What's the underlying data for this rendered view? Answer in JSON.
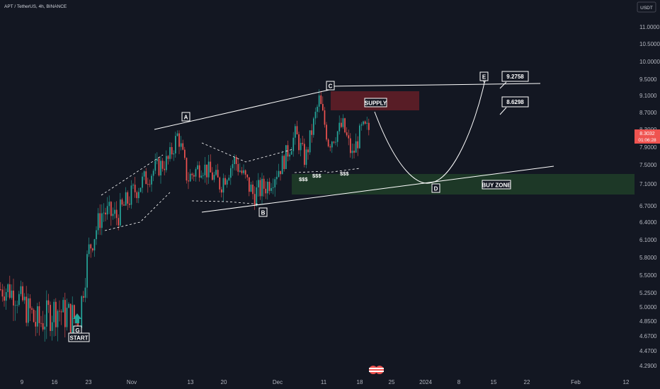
{
  "header": {
    "symbol_title": "APT / TetherUS, 4h, BINANCE",
    "currency": "USDT"
  },
  "chart_data": {
    "type": "candlestick",
    "title": "APT / TetherUS, 4h, BINANCE",
    "ylim": [
      4.2,
      11.5
    ],
    "y_ticks": [
      "11.0000",
      "10.5000",
      "10.0000",
      "9.5000",
      "9.1000",
      "8.7000",
      "8.3000",
      "7.9000",
      "7.5000",
      "7.1000",
      "6.7000",
      "6.4000",
      "6.1000",
      "5.8000",
      "5.5000",
      "5.2500",
      "5.0000",
      "4.8500",
      "4.6700",
      "4.4700",
      "4.2900"
    ],
    "x_ticks": [
      "9",
      "16",
      "23",
      "Nov",
      "13",
      "20",
      "Dec",
      "11",
      "18",
      "25",
      "2024",
      "8",
      "15",
      "22",
      "Feb",
      "12"
    ],
    "current_price": "8.3032",
    "countdown": "01:06:28",
    "price_path": [
      {
        "x": "Oct 6",
        "y": 5.3
      },
      {
        "x": "Oct 9",
        "y": 5.1
      },
      {
        "x": "Oct 12",
        "y": 4.8
      },
      {
        "x": "Oct 16",
        "y": 5.0
      },
      {
        "x": "Oct 19",
        "y": 4.9
      },
      {
        "x": "Oct 21",
        "y": 4.85
      },
      {
        "x": "Oct 23",
        "y": 5.9
      },
      {
        "x": "Oct 26",
        "y": 6.6
      },
      {
        "x": "Oct 29",
        "y": 6.5
      },
      {
        "x": "Nov 2",
        "y": 7.0
      },
      {
        "x": "Nov 6",
        "y": 7.4
      },
      {
        "x": "Nov 9",
        "y": 7.6
      },
      {
        "x": "Nov 11",
        "y": 8.2
      },
      {
        "x": "Nov 13",
        "y": 7.2
      },
      {
        "x": "Nov 16",
        "y": 7.5
      },
      {
        "x": "Nov 20",
        "y": 7.1
      },
      {
        "x": "Nov 23",
        "y": 7.6
      },
      {
        "x": "Nov 27",
        "y": 6.9
      },
      {
        "x": "Nov 30",
        "y": 7.1
      },
      {
        "x": "Dec 3",
        "y": 7.5
      },
      {
        "x": "Dec 6",
        "y": 8.2
      },
      {
        "x": "Dec 8",
        "y": 7.6
      },
      {
        "x": "Dec 11",
        "y": 9.0
      },
      {
        "x": "Dec 13",
        "y": 8.0
      },
      {
        "x": "Dec 16",
        "y": 8.4
      },
      {
        "x": "Dec 18",
        "y": 7.7
      },
      {
        "x": "Dec 20",
        "y": 8.3
      }
    ],
    "zones": [
      {
        "name": "SUPPLY",
        "y_range": [
          8.8,
          9.1
        ]
      },
      {
        "name": "BUY ZONE",
        "y_range": [
          6.9,
          7.3
        ]
      }
    ],
    "point_labels": [
      "G",
      "A",
      "B",
      "C",
      "D",
      "E"
    ],
    "annotations": [
      "START",
      "$$$",
      "$$$",
      "$$$",
      "9.2758",
      "8.6298"
    ]
  },
  "colors": {
    "bull": "#26a69a",
    "bear": "#ef5350",
    "supply": "#6b1f2a",
    "buy_zone": "#1e3d2a",
    "background": "#131722"
  }
}
